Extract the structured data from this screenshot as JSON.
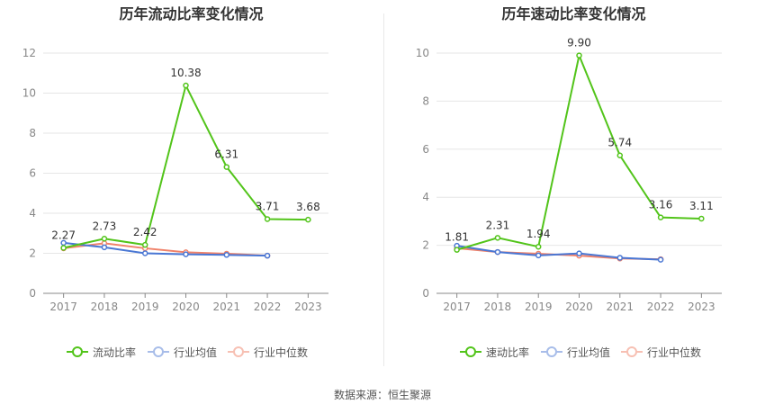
{
  "source_text": "数据来源：恒生聚源",
  "chart_data": [
    {
      "type": "line",
      "title": "历年流动比率变化情况",
      "categories": [
        "2017",
        "2018",
        "2019",
        "2020",
        "2021",
        "2022",
        "2023"
      ],
      "ylim": [
        0,
        12
      ],
      "yticks": [
        0,
        2,
        4,
        6,
        8,
        10,
        12
      ],
      "grid": true,
      "legend_position": "bottom",
      "series": [
        {
          "name": "流动比率",
          "color": "#52c41a",
          "values": [
            2.27,
            2.73,
            2.42,
            10.38,
            6.31,
            3.71,
            3.68
          ],
          "labels": [
            "2.27",
            "2.73",
            "2.42",
            "10.38",
            "6.31",
            "3.71",
            "3.68"
          ]
        },
        {
          "name": "行业均值",
          "color": "#4a77d4",
          "values": [
            2.52,
            2.3,
            2.0,
            1.95,
            1.92,
            1.88,
            null
          ]
        },
        {
          "name": "行业中位数",
          "color": "#f0826a",
          "values": [
            2.25,
            2.5,
            2.25,
            2.05,
            1.98,
            1.88,
            null
          ]
        }
      ]
    },
    {
      "type": "line",
      "title": "历年速动比率变化情况",
      "categories": [
        "2017",
        "2018",
        "2019",
        "2020",
        "2021",
        "2022",
        "2023"
      ],
      "ylim": [
        0,
        10
      ],
      "yticks": [
        0,
        2,
        4,
        6,
        8,
        10
      ],
      "grid": true,
      "legend_position": "bottom",
      "series": [
        {
          "name": "速动比率",
          "color": "#52c41a",
          "values": [
            1.81,
            2.31,
            1.94,
            9.9,
            5.74,
            3.16,
            3.11
          ],
          "labels": [
            "1.81",
            "2.31",
            "1.94",
            "9.90",
            "5.74",
            "3.16",
            "3.11"
          ]
        },
        {
          "name": "行业均值",
          "color": "#4a77d4",
          "values": [
            1.98,
            1.72,
            1.58,
            1.66,
            1.48,
            1.4,
            null
          ]
        },
        {
          "name": "行业中位数",
          "color": "#f0826a",
          "values": [
            1.88,
            1.72,
            1.65,
            1.57,
            1.45,
            1.42,
            null
          ]
        }
      ]
    }
  ]
}
